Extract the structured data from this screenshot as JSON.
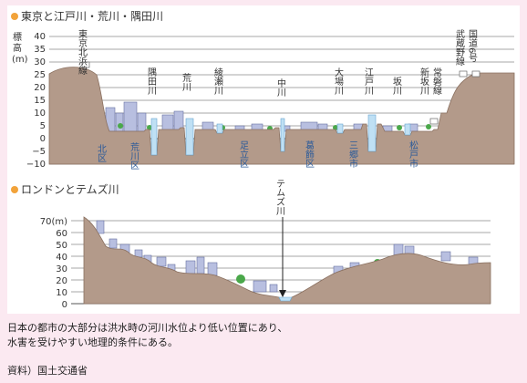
{
  "tokyo": {
    "title": "東京と江戸川・荒川・隅田川",
    "y_axis_label": "標高（m）",
    "y_ticks": [
      "40",
      "35",
      "30",
      "25",
      "20",
      "15",
      "10",
      "5",
      "0",
      "−5",
      "−10"
    ],
    "ylim": [
      -10,
      40
    ],
    "rivers": [
      {
        "name": "隅田川"
      },
      {
        "name": "荒川"
      },
      {
        "name": "綾瀬川"
      },
      {
        "name": "中川"
      },
      {
        "name": "大場川"
      },
      {
        "name": "江戸川"
      },
      {
        "name": "坂川"
      },
      {
        "name": "新坂川"
      }
    ],
    "rail_lines": [
      {
        "name": "東京北浜線"
      },
      {
        "name": "常磐線"
      },
      {
        "name": "武蔵野線"
      },
      {
        "name": "国道6号"
      }
    ],
    "wards": [
      {
        "name": "北区"
      },
      {
        "name": "荒川区"
      },
      {
        "name": "足立区"
      },
      {
        "name": "葛飾区"
      },
      {
        "name": "三郷市"
      },
      {
        "name": "松戸市"
      }
    ]
  },
  "london": {
    "title": "ロンドンとテムズ川",
    "river_label": "テムズ川",
    "y_ticks": [
      "70(m)",
      "60",
      "50",
      "40",
      "30",
      "20",
      "10",
      "0"
    ],
    "ylim": [
      0,
      70
    ]
  },
  "caption_lines": [
    "日本の都市の大部分は洪水時の河川水位より低い位置にあり、",
    "水害を受けやすい地理的条件にある。"
  ],
  "source": "資料）国土交通省",
  "colors": {
    "background": "#fbe9f1",
    "terrain": "#b39a8a",
    "water": "#bfe0f4",
    "building": "#b8bfe0",
    "tree": "#4aa84a",
    "bullet": "#f2a33a"
  }
}
